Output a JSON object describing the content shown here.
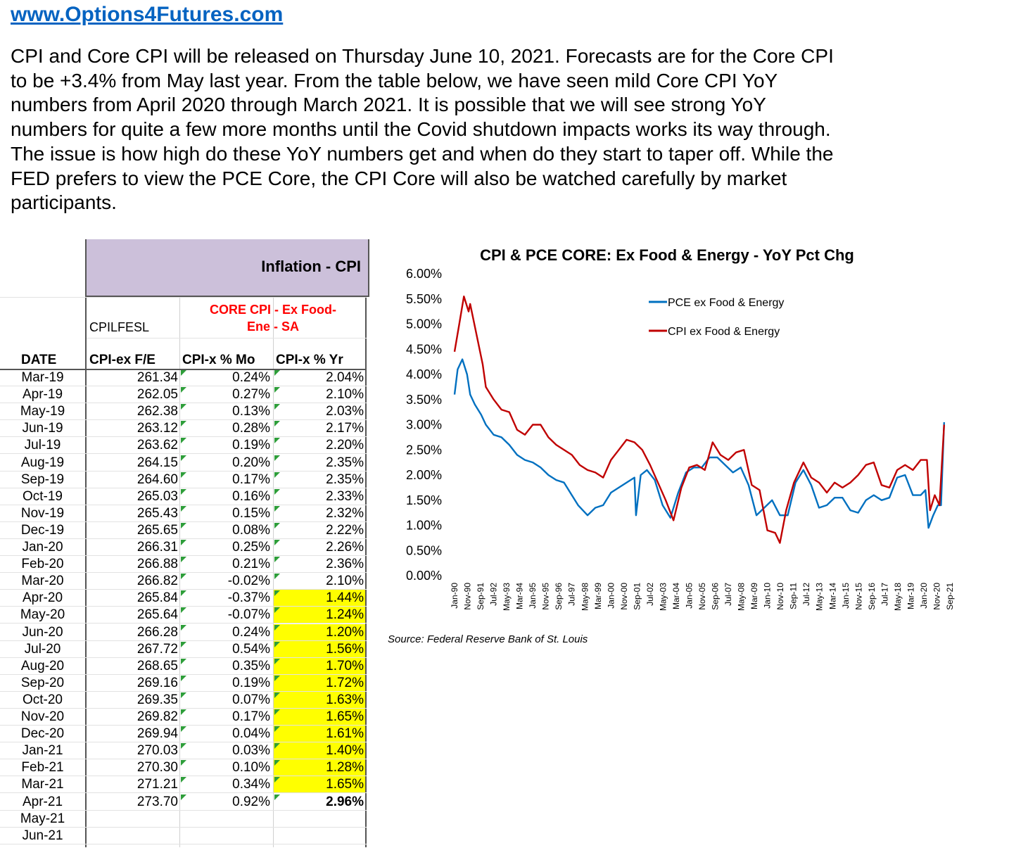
{
  "header": {
    "site_link": "www.Options4Futures.com",
    "intro": "CPI and Core CPI will be released on Thursday June 10, 2021. Forecasts are for the Core CPI\nto be +3.4% from May last year. From the table below, we have seen mild Core CPI YoY\nnumbers from April 2020 through March 2021. It is possible that we will see strong YoY\nnumbers for quite a few more months until the Covid shutdown impacts works its way through.\nThe issue is how high do these YoY numbers get and when do they start to taper off. While the\nFED prefers to view the PCE Core, the CPI Core will also be watched carefully by market\nparticipants."
  },
  "table": {
    "banner": "Inflation - CPI",
    "series_code": "CPILFESL",
    "series_desc": "CORE CPI - Ex Food-\nEne - SA",
    "columns": [
      "DATE",
      "CPI-ex F/E",
      "CPI-x % Mo",
      "CPI-x % Yr"
    ],
    "highlight_color": "#FFFF00",
    "rows": [
      {
        "date": "Mar-19",
        "index": "261.34",
        "mo": "0.24%",
        "yr": "2.04%",
        "hl": false
      },
      {
        "date": "Apr-19",
        "index": "262.05",
        "mo": "0.27%",
        "yr": "2.10%",
        "hl": false
      },
      {
        "date": "May-19",
        "index": "262.38",
        "mo": "0.13%",
        "yr": "2.03%",
        "hl": false
      },
      {
        "date": "Jun-19",
        "index": "263.12",
        "mo": "0.28%",
        "yr": "2.17%",
        "hl": false
      },
      {
        "date": "Jul-19",
        "index": "263.62",
        "mo": "0.19%",
        "yr": "2.20%",
        "hl": false
      },
      {
        "date": "Aug-19",
        "index": "264.15",
        "mo": "0.20%",
        "yr": "2.35%",
        "hl": false
      },
      {
        "date": "Sep-19",
        "index": "264.60",
        "mo": "0.17%",
        "yr": "2.35%",
        "hl": false
      },
      {
        "date": "Oct-19",
        "index": "265.03",
        "mo": "0.16%",
        "yr": "2.33%",
        "hl": false
      },
      {
        "date": "Nov-19",
        "index": "265.43",
        "mo": "0.15%",
        "yr": "2.32%",
        "hl": false
      },
      {
        "date": "Dec-19",
        "index": "265.65",
        "mo": "0.08%",
        "yr": "2.22%",
        "hl": false
      },
      {
        "date": "Jan-20",
        "index": "266.31",
        "mo": "0.25%",
        "yr": "2.26%",
        "hl": false
      },
      {
        "date": "Feb-20",
        "index": "266.88",
        "mo": "0.21%",
        "yr": "2.36%",
        "hl": false
      },
      {
        "date": "Mar-20",
        "index": "266.82",
        "mo": "-0.02%",
        "yr": "2.10%",
        "hl": false
      },
      {
        "date": "Apr-20",
        "index": "265.84",
        "mo": "-0.37%",
        "yr": "1.44%",
        "hl": true
      },
      {
        "date": "May-20",
        "index": "265.64",
        "mo": "-0.07%",
        "yr": "1.24%",
        "hl": true
      },
      {
        "date": "Jun-20",
        "index": "266.28",
        "mo": "0.24%",
        "yr": "1.20%",
        "hl": true
      },
      {
        "date": "Jul-20",
        "index": "267.72",
        "mo": "0.54%",
        "yr": "1.56%",
        "hl": true
      },
      {
        "date": "Aug-20",
        "index": "268.65",
        "mo": "0.35%",
        "yr": "1.70%",
        "hl": true
      },
      {
        "date": "Sep-20",
        "index": "269.16",
        "mo": "0.19%",
        "yr": "1.72%",
        "hl": true
      },
      {
        "date": "Oct-20",
        "index": "269.35",
        "mo": "0.07%",
        "yr": "1.63%",
        "hl": true
      },
      {
        "date": "Nov-20",
        "index": "269.82",
        "mo": "0.17%",
        "yr": "1.65%",
        "hl": true
      },
      {
        "date": "Dec-20",
        "index": "269.94",
        "mo": "0.04%",
        "yr": "1.61%",
        "hl": true
      },
      {
        "date": "Jan-21",
        "index": "270.03",
        "mo": "0.03%",
        "yr": "1.40%",
        "hl": true
      },
      {
        "date": "Feb-21",
        "index": "270.30",
        "mo": "0.10%",
        "yr": "1.28%",
        "hl": true
      },
      {
        "date": "Mar-21",
        "index": "271.21",
        "mo": "0.34%",
        "yr": "1.65%",
        "hl": true
      },
      {
        "date": "Apr-21",
        "index": "273.70",
        "mo": "0.92%",
        "yr": "2.96%",
        "hl": false,
        "bold": true
      },
      {
        "date": "May-21",
        "index": "",
        "mo": "",
        "yr": "",
        "hl": false
      },
      {
        "date": "Jun-21",
        "index": "",
        "mo": "",
        "yr": "",
        "hl": false
      }
    ]
  },
  "chart_data": {
    "type": "line",
    "title": "CPI & PCE CORE: Ex Food & Energy - YoY Pct Chg",
    "source": "Source: Federal Reserve Bank of St. Louis",
    "ylim": [
      0,
      6
    ],
    "y_ticks": [
      "0.00%",
      "0.50%",
      "1.00%",
      "1.50%",
      "2.00%",
      "2.50%",
      "3.00%",
      "3.50%",
      "4.00%",
      "4.50%",
      "5.00%",
      "5.50%",
      "6.00%"
    ],
    "x_ticks": [
      "Jan-90",
      "Nov-90",
      "Sep-91",
      "Jul-92",
      "May-93",
      "Mar-94",
      "Jan-95",
      "Nov-95",
      "Sep-96",
      "Jul-97",
      "May-98",
      "Mar-99",
      "Jan-00",
      "Nov-00",
      "Sep-01",
      "Jul-02",
      "May-03",
      "Mar-04",
      "Jan-05",
      "Nov-05",
      "Sep-06",
      "Jul-07",
      "May-08",
      "Mar-09",
      "Jan-10",
      "Nov-10",
      "Sep-11",
      "Jul-12",
      "May-13",
      "Mar-14",
      "Jan-15",
      "Nov-15",
      "Sep-16",
      "Jul-17",
      "May-18",
      "Mar-19",
      "Jan-20",
      "Nov-20",
      "Sep-21"
    ],
    "legend_position": "top-right",
    "grid": false,
    "series": [
      {
        "name": "PCE ex Food & Energy",
        "color": "#0070C0",
        "x": [
          1990.0,
          1990.2,
          1990.5,
          1990.8,
          1991.0,
          1991.3,
          1991.7,
          1992.0,
          1992.5,
          1993.0,
          1993.5,
          1994.0,
          1994.5,
          1995.0,
          1995.5,
          1996.0,
          1996.5,
          1997.0,
          1997.5,
          1997.9,
          1998.5,
          1999.0,
          1999.5,
          2000.0,
          2000.5,
          2001.0,
          2001.5,
          2001.6,
          2001.9,
          2002.3,
          2002.8,
          2003.3,
          2003.8,
          2004.3,
          2004.8,
          2005.3,
          2005.8,
          2006.3,
          2006.8,
          2007.3,
          2007.8,
          2008.3,
          2008.8,
          2009.3,
          2009.8,
          2010.3,
          2010.8,
          2011.3,
          2011.8,
          2012.3,
          2012.8,
          2013.3,
          2013.8,
          2014.3,
          2014.8,
          2015.3,
          2015.8,
          2016.3,
          2016.8,
          2017.3,
          2017.8,
          2018.3,
          2018.8,
          2019.3,
          2019.8,
          2020.1,
          2020.3,
          2020.6,
          2020.9,
          2021.1,
          2021.3
        ],
        "values": [
          3.6,
          4.1,
          4.3,
          4.0,
          3.6,
          3.4,
          3.2,
          3.0,
          2.8,
          2.75,
          2.6,
          2.4,
          2.3,
          2.25,
          2.15,
          2.0,
          1.9,
          1.85,
          1.6,
          1.4,
          1.2,
          1.35,
          1.4,
          1.65,
          1.75,
          1.85,
          1.95,
          1.2,
          2.0,
          2.1,
          1.9,
          1.4,
          1.15,
          1.65,
          2.05,
          2.15,
          2.15,
          2.35,
          2.35,
          2.2,
          2.05,
          2.15,
          1.8,
          1.2,
          1.35,
          1.5,
          1.2,
          1.2,
          1.85,
          2.1,
          1.8,
          1.35,
          1.4,
          1.55,
          1.55,
          1.3,
          1.25,
          1.5,
          1.6,
          1.5,
          1.55,
          1.95,
          2.0,
          1.6,
          1.6,
          1.7,
          0.95,
          1.2,
          1.4,
          1.4,
          3.05
        ]
      },
      {
        "name": "CPI ex Food &  Energy",
        "color": "#C00000",
        "x": [
          1990.0,
          1990.3,
          1990.6,
          1990.9,
          1991.0,
          1991.4,
          1991.8,
          1992.0,
          1992.5,
          1993.0,
          1993.5,
          1994.0,
          1994.5,
          1995.0,
          1995.5,
          1996.0,
          1996.5,
          1997.0,
          1997.5,
          1998.0,
          1998.5,
          1999.0,
          1999.5,
          2000.0,
          2000.5,
          2001.0,
          2001.5,
          2002.0,
          2002.5,
          2003.0,
          2003.5,
          2004.0,
          2004.5,
          2005.0,
          2005.5,
          2006.0,
          2006.5,
          2007.0,
          2007.5,
          2008.0,
          2008.5,
          2009.0,
          2009.5,
          2010.0,
          2010.5,
          2010.8,
          2011.2,
          2011.7,
          2012.3,
          2012.8,
          2013.3,
          2013.8,
          2014.3,
          2014.8,
          2015.3,
          2015.8,
          2016.3,
          2016.8,
          2017.3,
          2017.8,
          2018.3,
          2018.8,
          2019.3,
          2019.8,
          2020.2,
          2020.4,
          2020.7,
          2021.0,
          2021.3
        ],
        "values": [
          4.45,
          5.0,
          5.55,
          5.25,
          5.4,
          4.8,
          4.2,
          3.75,
          3.5,
          3.3,
          3.25,
          2.9,
          2.8,
          3.0,
          3.0,
          2.75,
          2.6,
          2.5,
          2.4,
          2.2,
          2.1,
          2.05,
          1.95,
          2.3,
          2.5,
          2.7,
          2.65,
          2.5,
          2.2,
          1.85,
          1.5,
          1.1,
          1.75,
          2.15,
          2.2,
          2.1,
          2.65,
          2.4,
          2.3,
          2.45,
          2.5,
          1.8,
          1.7,
          0.9,
          0.85,
          0.65,
          1.3,
          1.85,
          2.25,
          1.95,
          1.85,
          1.65,
          1.85,
          1.75,
          1.85,
          2.0,
          2.2,
          2.25,
          1.8,
          1.75,
          2.1,
          2.2,
          2.1,
          2.3,
          2.3,
          1.3,
          1.6,
          1.4,
          3.0
        ]
      }
    ]
  }
}
